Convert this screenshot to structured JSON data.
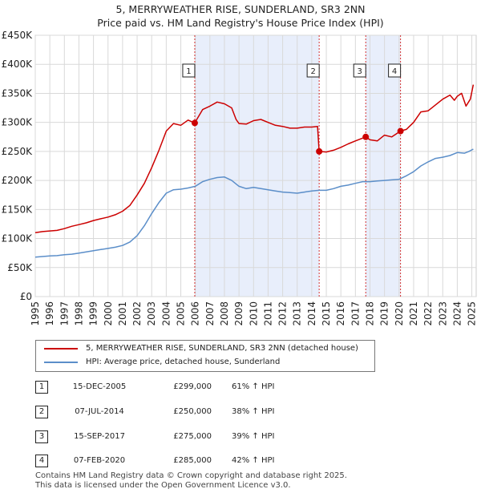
{
  "chart_data": {
    "type": "line",
    "title": "5, MERRYWEATHER RISE, SUNDERLAND, SR3 2NN",
    "subtitle": "Price paid vs. HM Land Registry's House Price Index (HPI)",
    "xlabel": "",
    "ylabel": "",
    "xlim": [
      1995.0,
      2025.3
    ],
    "ylim": [
      0,
      450000
    ],
    "x_ticks": [
      "1995",
      "1996",
      "1997",
      "1998",
      "1999",
      "2000",
      "2001",
      "2002",
      "2003",
      "2004",
      "2005",
      "2006",
      "2007",
      "2008",
      "2009",
      "2010",
      "2011",
      "2012",
      "2013",
      "2014",
      "2015",
      "2016",
      "2017",
      "2018",
      "2019",
      "2020",
      "2021",
      "2022",
      "2023",
      "2024",
      "2025"
    ],
    "y_ticks": [
      {
        "value": 0,
        "label": "£0"
      },
      {
        "value": 50000,
        "label": "£50K"
      },
      {
        "value": 100000,
        "label": "£100K"
      },
      {
        "value": 150000,
        "label": "£150K"
      },
      {
        "value": 200000,
        "label": "£200K"
      },
      {
        "value": 250000,
        "label": "£250K"
      },
      {
        "value": 300000,
        "label": "£300K"
      },
      {
        "value": 350000,
        "label": "£350K"
      },
      {
        "value": 400000,
        "label": "£400K"
      },
      {
        "value": 450000,
        "label": "£450K"
      }
    ],
    "grid": true,
    "shaded_ranges": [
      [
        2005.96,
        2014.51
      ],
      [
        2017.71,
        2020.1
      ]
    ],
    "series": [
      {
        "name": "5, MERRYWEATHER RISE, SUNDERLAND, SR3 2NN (detached house)",
        "color": "#cc0000",
        "x": [
          1995.0,
          1995.5,
          1996.0,
          1996.5,
          1997.0,
          1997.5,
          1998.0,
          1998.5,
          1999.0,
          1999.5,
          2000.0,
          2000.5,
          2001.0,
          2001.5,
          2002.0,
          2002.5,
          2003.0,
          2003.5,
          2004.0,
          2004.5,
          2005.0,
          2005.5,
          2005.96,
          2006.5,
          2007.0,
          2007.5,
          2008.0,
          2008.5,
          2008.8,
          2009.0,
          2009.5,
          2010.0,
          2010.5,
          2011.0,
          2011.5,
          2012.0,
          2012.5,
          2013.0,
          2013.5,
          2014.0,
          2014.4,
          2014.51,
          2015.0,
          2015.5,
          2016.0,
          2016.5,
          2017.0,
          2017.71,
          2018.0,
          2018.5,
          2019.0,
          2019.5,
          2020.1,
          2020.5,
          2021.0,
          2021.5,
          2022.0,
          2022.5,
          2023.0,
          2023.5,
          2023.8,
          2024.0,
          2024.3,
          2024.6,
          2024.9,
          2025.1
        ],
        "y": [
          110000,
          112000,
          113000,
          114000,
          117000,
          121000,
          124000,
          127000,
          131000,
          134000,
          137000,
          141000,
          147000,
          157000,
          175000,
          195000,
          222000,
          252000,
          285000,
          298000,
          295000,
          304000,
          299000,
          322000,
          328000,
          335000,
          332000,
          325000,
          305000,
          298000,
          297000,
          303000,
          305000,
          300000,
          295000,
          293000,
          290000,
          290000,
          292000,
          292000,
          293000,
          250000,
          249000,
          252000,
          257000,
          263000,
          268000,
          275000,
          270000,
          268000,
          278000,
          275000,
          285000,
          288000,
          300000,
          318000,
          320000,
          330000,
          340000,
          347000,
          338000,
          345000,
          350000,
          328000,
          340000,
          365000
        ]
      },
      {
        "name": "HPI: Average price, detached house, Sunderland",
        "color": "#5b8ec9",
        "x": [
          1995.0,
          1995.5,
          1996.0,
          1996.5,
          1997.0,
          1997.5,
          1998.0,
          1998.5,
          1999.0,
          1999.5,
          2000.0,
          2000.5,
          2001.0,
          2001.5,
          2002.0,
          2002.5,
          2003.0,
          2003.5,
          2004.0,
          2004.5,
          2005.0,
          2005.5,
          2006.0,
          2006.5,
          2007.0,
          2007.5,
          2008.0,
          2008.5,
          2009.0,
          2009.5,
          2010.0,
          2010.5,
          2011.0,
          2011.5,
          2012.0,
          2012.5,
          2013.0,
          2013.5,
          2014.0,
          2014.5,
          2015.0,
          2015.5,
          2016.0,
          2016.5,
          2017.0,
          2017.5,
          2018.0,
          2018.5,
          2019.0,
          2019.5,
          2020.0,
          2020.5,
          2021.0,
          2021.5,
          2022.0,
          2022.5,
          2023.0,
          2023.5,
          2024.0,
          2024.5,
          2024.8,
          2025.1
        ],
        "y": [
          68000,
          69000,
          70000,
          70500,
          72000,
          73000,
          75000,
          77000,
          79000,
          81000,
          83000,
          85000,
          88000,
          94000,
          105000,
          122000,
          143000,
          162000,
          178000,
          184000,
          185000,
          187000,
          190000,
          198000,
          202000,
          205000,
          206000,
          200000,
          190000,
          186000,
          188000,
          186000,
          184000,
          182000,
          180000,
          179000,
          178000,
          180000,
          182000,
          183000,
          183000,
          186000,
          190000,
          192000,
          195000,
          198000,
          198000,
          199000,
          200000,
          201000,
          202000,
          208000,
          215000,
          225000,
          232000,
          238000,
          240000,
          243000,
          248000,
          247000,
          250000,
          254000
        ]
      }
    ],
    "markers": [
      {
        "label": "1",
        "x": 2005.96,
        "y": 299000
      },
      {
        "label": "2",
        "x": 2014.51,
        "y": 250000
      },
      {
        "label": "3",
        "x": 2017.71,
        "y": 275000
      },
      {
        "label": "4",
        "x": 2020.1,
        "y": 285000
      }
    ]
  },
  "legend": {
    "property_label": "5, MERRYWEATHER RISE, SUNDERLAND, SR3 2NN (detached house)",
    "hpi_label": "HPI: Average price, detached house, Sunderland",
    "property_color": "#cc0000",
    "hpi_color": "#5b8ec9"
  },
  "transactions": [
    {
      "num": "1",
      "date": "15-DEC-2005",
      "price": "£299,000",
      "hpi": "61% ↑ HPI"
    },
    {
      "num": "2",
      "date": "07-JUL-2014",
      "price": "£250,000",
      "hpi": "38% ↑ HPI"
    },
    {
      "num": "3",
      "date": "15-SEP-2017",
      "price": "£275,000",
      "hpi": "39% ↑ HPI"
    },
    {
      "num": "4",
      "date": "07-FEB-2020",
      "price": "£285,000",
      "hpi": "42% ↑ HPI"
    }
  ],
  "footer": {
    "line1": "Contains HM Land Registry data © Crown copyright and database right 2025.",
    "line2": "This data is licensed under the Open Government Licence v3.0."
  }
}
